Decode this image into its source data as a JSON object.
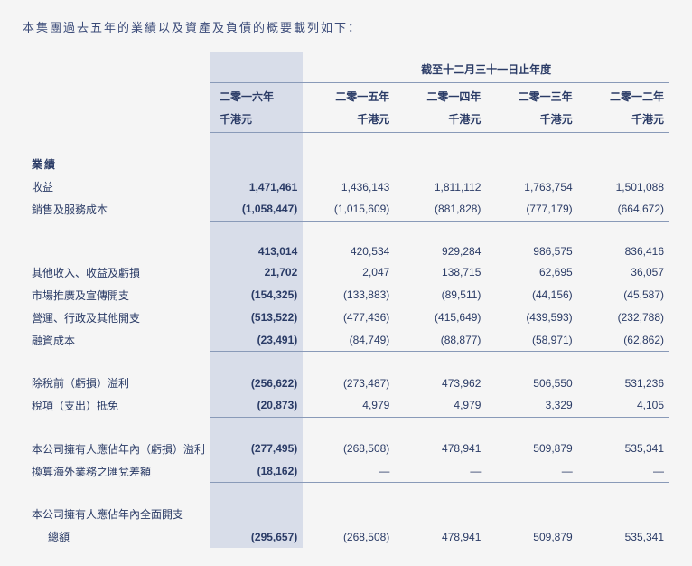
{
  "intro": "本集團過去五年的業績以及資產及負債的概要載列如下：",
  "table": {
    "super_header": "截至十二月三十一日止年度",
    "year_headers": [
      "二零一六年",
      "二零一五年",
      "二零一四年",
      "二零一三年",
      "二零一二年"
    ],
    "unit_headers": [
      "千港元",
      "千港元",
      "千港元",
      "千港元",
      "千港元"
    ],
    "section1_label": "業績",
    "rows": [
      {
        "label": "收益",
        "v": [
          "1,471,461",
          "1,436,143",
          "1,811,112",
          "1,763,754",
          "1,501,088"
        ]
      },
      {
        "label": "銷售及服務成本",
        "v": [
          "(1,058,447)",
          "(1,015,609)",
          "(881,828)",
          "(777,179)",
          "(664,672)"
        ],
        "underline": true
      },
      {
        "spacer": true
      },
      {
        "label": "",
        "v": [
          "413,014",
          "420,534",
          "929,284",
          "986,575",
          "836,416"
        ]
      },
      {
        "label": "其他收入、收益及虧損",
        "v": [
          "21,702",
          "2,047",
          "138,715",
          "62,695",
          "36,057"
        ]
      },
      {
        "label": "市場推廣及宣傳開支",
        "v": [
          "(154,325)",
          "(133,883)",
          "(89,511)",
          "(44,156)",
          "(45,587)"
        ]
      },
      {
        "label": "營運、行政及其他開支",
        "v": [
          "(513,522)",
          "(477,436)",
          "(415,649)",
          "(439,593)",
          "(232,788)"
        ]
      },
      {
        "label": "融資成本",
        "v": [
          "(23,491)",
          "(84,749)",
          "(88,877)",
          "(58,971)",
          "(62,862)"
        ],
        "underline": true
      },
      {
        "spacer": true
      },
      {
        "label": "除稅前（虧損）溢利",
        "v": [
          "(256,622)",
          "(273,487)",
          "473,962",
          "506,550",
          "531,236"
        ]
      },
      {
        "label": "稅項（支出）抵免",
        "v": [
          "(20,873)",
          "4,979",
          "4,979",
          "3,329",
          "4,105"
        ],
        "underline": true
      },
      {
        "spacer": true
      },
      {
        "label": "本公司擁有人應佔年內（虧損）溢利",
        "v": [
          "(277,495)",
          "(268,508)",
          "478,941",
          "509,879",
          "535,341"
        ]
      },
      {
        "label": "換算海外業務之匯兌差額",
        "v": [
          "(18,162)",
          "—",
          "—",
          "—",
          "—"
        ],
        "underline": true
      },
      {
        "spacer": true
      },
      {
        "label": "本公司擁有人應佔年內全面開支",
        "v": [
          "",
          "",
          "",
          "",
          ""
        ]
      },
      {
        "label": "總額",
        "indent": true,
        "v": [
          "(295,657)",
          "(268,508)",
          "478,941",
          "509,879",
          "535,341"
        ]
      }
    ]
  },
  "colors": {
    "text": "#2a3b66",
    "highlight_bg": "#d8dde9",
    "border": "#899ab8",
    "page_bg": "#f5f5f5"
  }
}
